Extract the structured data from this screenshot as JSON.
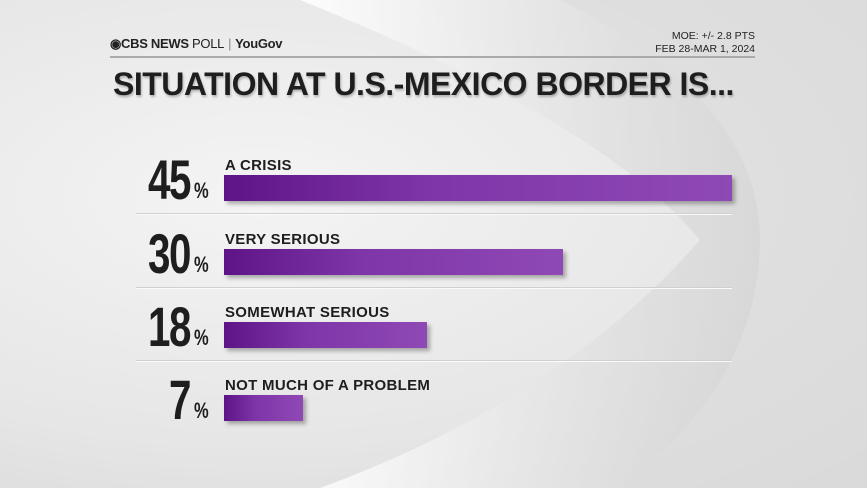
{
  "header": {
    "brand": "CBS NEWS",
    "poll": "POLL",
    "partner": "YouGov",
    "moe": "MOE: +/- 2.8 PTS",
    "dates": "FEB 28-MAR 1, 2024"
  },
  "chart_data": {
    "type": "bar",
    "title": "SITUATION AT U.S.-MEXICO BORDER IS...",
    "categories": [
      "A CRISIS",
      "VERY SERIOUS",
      "SOMEWHAT SERIOUS",
      "NOT MUCH OF A PROBLEM"
    ],
    "values": [
      45,
      30,
      18,
      7
    ],
    "value_labels": [
      "45",
      "30",
      "18",
      "7"
    ],
    "unit": "%",
    "orientation": "horizontal",
    "bar_color": "#7e35a8",
    "grid": false
  }
}
